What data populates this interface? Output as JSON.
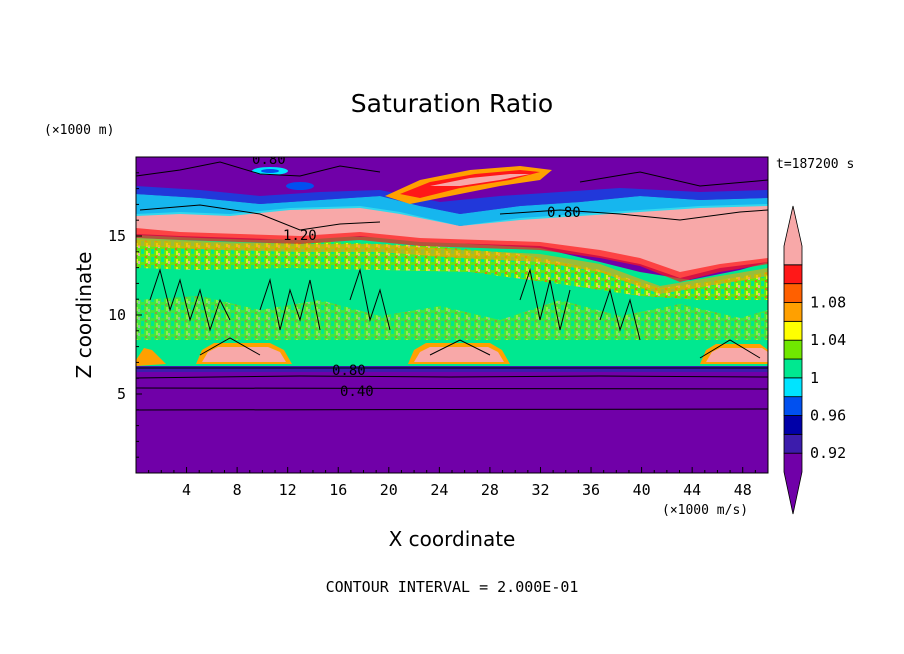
{
  "chart_data": {
    "type": "heatmap",
    "title": "Saturation Ratio",
    "xlabel": "X coordinate",
    "ylabel": "Z coordinate",
    "x_unit": "(×1000 m/s)",
    "y_unit": "(×1000 m)",
    "time_label": "t=187200 s",
    "footer": "CONTOUR INTERVAL = 2.000E-01",
    "xlim": [
      0,
      50
    ],
    "ylim": [
      0,
      20
    ],
    "x_ticks": [
      4,
      8,
      12,
      16,
      20,
      24,
      28,
      32,
      36,
      40,
      44,
      48
    ],
    "y_ticks": [
      5,
      10,
      15
    ],
    "colorbar": {
      "colors": [
        "#7000a8",
        "#3c1cac",
        "#0000a8",
        "#0050f0",
        "#00e4ff",
        "#00e890",
        "#70e800",
        "#ffff00",
        "#ffa000",
        "#ff6000",
        "#ff1818",
        "#f8a8a8"
      ],
      "labels": [
        {
          "value": 0.92,
          "text": "0.92"
        },
        {
          "value": 0.96,
          "text": "0.96"
        },
        {
          "value": 1.0,
          "text": "1"
        },
        {
          "value": 1.04,
          "text": "1.04"
        },
        {
          "value": 1.08,
          "text": "1.08"
        }
      ]
    },
    "contour_labels": [
      {
        "text": "0.80",
        "x": 17.5,
        "y": 19.5
      },
      {
        "text": "0.80",
        "x": 35,
        "y": 16.5
      },
      {
        "text": "1.20",
        "x": 13,
        "y": 15
      },
      {
        "text": "0.80",
        "x": 17.5,
        "y": 6.3
      },
      {
        "text": "0.40",
        "x": 17.5,
        "y": 5.1
      }
    ]
  }
}
